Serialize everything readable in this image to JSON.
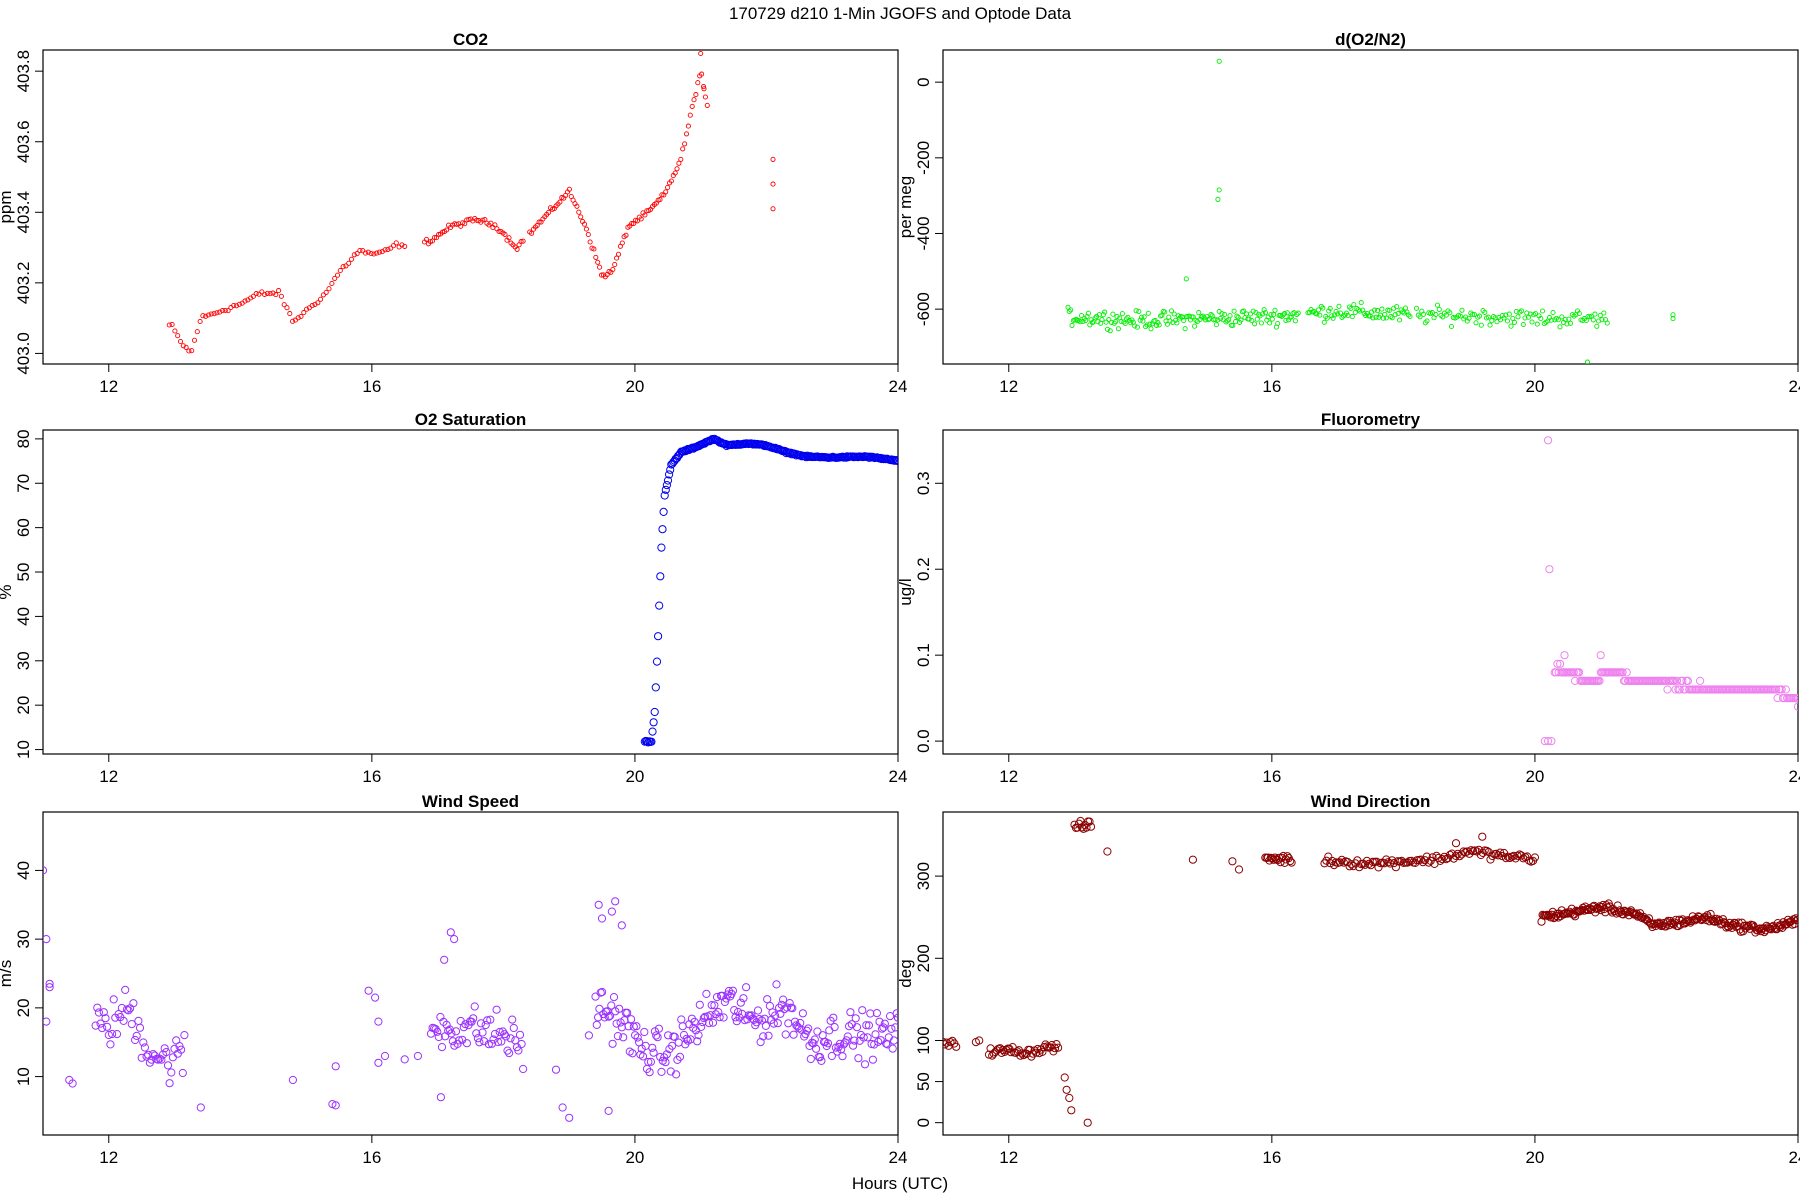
{
  "figure": {
    "title": "170729   d210   1-Min  JGOFS and Optode Data",
    "xlabel": "Hours (UTC)"
  },
  "chart_data": [
    {
      "type": "scatter",
      "title": "CO2",
      "ylabel": "ppm",
      "color": "#ff0000",
      "marker": "small",
      "xlim": [
        11,
        24
      ],
      "ylim": [
        402.97,
        403.86
      ],
      "xticks": [
        12,
        16,
        20,
        24
      ],
      "yticks": [
        403.0,
        403.2,
        403.4,
        403.6,
        403.8
      ],
      "keypoints": [
        [
          12.95,
          403.08
        ],
        [
          13.1,
          403.03
        ],
        [
          13.25,
          403.0
        ],
        [
          13.4,
          403.1
        ],
        [
          13.7,
          403.12
        ],
        [
          14.0,
          403.14
        ],
        [
          14.3,
          403.17
        ],
        [
          14.6,
          403.17
        ],
        [
          14.8,
          403.09
        ],
        [
          15.0,
          403.12
        ],
        [
          15.3,
          403.17
        ],
        [
          15.5,
          403.23
        ],
        [
          15.8,
          403.29
        ],
        [
          16.1,
          403.28
        ],
        [
          16.4,
          403.31
        ],
        [
          16.5,
          403.3
        ],
        [
          16.9,
          403.32
        ],
        [
          17.2,
          403.36
        ],
        [
          17.6,
          403.38
        ],
        [
          17.9,
          403.36
        ],
        [
          18.2,
          403.3
        ],
        [
          18.5,
          403.36
        ],
        [
          18.8,
          403.42
        ],
        [
          19.0,
          403.46
        ],
        [
          19.25,
          403.36
        ],
        [
          19.5,
          403.22
        ],
        [
          19.65,
          403.23
        ],
        [
          19.9,
          403.36
        ],
        [
          20.2,
          403.4
        ],
        [
          20.45,
          403.45
        ],
        [
          20.7,
          403.55
        ],
        [
          20.9,
          403.72
        ],
        [
          21.0,
          403.8
        ],
        [
          21.1,
          403.7
        ]
      ],
      "segments": [
        [
          12.92,
          16.5,
          85
        ],
        [
          16.8,
          18.3,
          50
        ],
        [
          18.4,
          21.1,
          95
        ]
      ],
      "extra_points": [
        [
          22.1,
          403.55
        ],
        [
          22.1,
          403.48
        ],
        [
          22.1,
          403.41
        ],
        [
          21.05,
          403.75
        ],
        [
          21.0,
          403.85
        ]
      ]
    },
    {
      "type": "scatter",
      "title": "d(O2/N2)",
      "ylabel": "per meg",
      "color": "#00ee00",
      "marker": "small",
      "xlim": [
        11,
        24
      ],
      "ylim": [
        -745,
        85
      ],
      "xticks": [
        12,
        16,
        20,
        24
      ],
      "yticks": [
        -600,
        -400,
        -200,
        0
      ],
      "keypoints": [
        [
          12.9,
          -620
        ],
        [
          14.0,
          -630
        ],
        [
          15.0,
          -625
        ],
        [
          16.0,
          -620
        ],
        [
          17.0,
          -605
        ],
        [
          18.0,
          -615
        ],
        [
          19.0,
          -618
        ],
        [
          20.0,
          -624
        ],
        [
          21.1,
          -625
        ]
      ],
      "segments": [
        [
          12.9,
          16.4,
          170
        ],
        [
          16.55,
          18.1,
          70
        ],
        [
          18.2,
          21.1,
          110
        ]
      ],
      "scatter_spread": 60,
      "extra_points": [
        [
          15.2,
          55
        ],
        [
          15.2,
          -285
        ],
        [
          15.18,
          -310
        ],
        [
          14.7,
          -520
        ],
        [
          20.8,
          -740
        ],
        [
          22.1,
          -615
        ],
        [
          22.1,
          -625
        ]
      ]
    },
    {
      "type": "scatter",
      "title": "O2 Saturation",
      "ylabel": "%",
      "color": "#0000ee",
      "marker": "large",
      "xlim": [
        11,
        24
      ],
      "ylim": [
        9,
        82
      ],
      "xticks": [
        12,
        16,
        20,
        24
      ],
      "yticks": [
        10,
        20,
        30,
        40,
        50,
        60,
        70,
        80
      ],
      "keypoints": [
        [
          20.15,
          11.8
        ],
        [
          20.25,
          11.8
        ],
        [
          20.3,
          18
        ],
        [
          20.35,
          35
        ],
        [
          20.4,
          55
        ],
        [
          20.45,
          67
        ],
        [
          20.55,
          74
        ],
        [
          20.7,
          77
        ],
        [
          20.9,
          78
        ],
        [
          21.05,
          79
        ],
        [
          21.2,
          80
        ],
        [
          21.4,
          78.5
        ],
        [
          21.7,
          79
        ],
        [
          22.0,
          78.5
        ],
        [
          22.3,
          77
        ],
        [
          22.6,
          76
        ],
        [
          23.0,
          75.8
        ],
        [
          23.5,
          76
        ],
        [
          23.8,
          75.5
        ],
        [
          24.0,
          75
        ]
      ],
      "segments": [
        [
          20.15,
          24.0,
          230
        ]
      ],
      "extra_points": []
    },
    {
      "type": "scatter",
      "title": "Fluorometry",
      "ylabel": "ug/l",
      "color": "#ee82ee",
      "marker": "large",
      "xlim": [
        11,
        24
      ],
      "ylim": [
        -0.015,
        0.362
      ],
      "xticks": [
        12,
        16,
        20,
        24
      ],
      "yticks": [
        0.0,
        0.1,
        0.2,
        0.3
      ],
      "keypoints": [
        [
          20.3,
          0.085
        ],
        [
          20.8,
          0.07
        ],
        [
          21.2,
          0.08
        ],
        [
          21.5,
          0.07
        ],
        [
          22.2,
          0.065
        ],
        [
          22.8,
          0.06
        ],
        [
          23.5,
          0.06
        ],
        [
          23.8,
          0.055
        ],
        [
          24.0,
          0.05
        ]
      ],
      "segments": [
        [
          20.3,
          24.0,
          180
        ]
      ],
      "quantize": 0.01,
      "extra_points": [
        [
          20.2,
          0.35
        ],
        [
          20.22,
          0.2
        ],
        [
          20.15,
          0.0
        ],
        [
          20.2,
          0.0
        ],
        [
          20.25,
          0.0
        ],
        [
          21.0,
          0.1
        ],
        [
          20.45,
          0.1
        ],
        [
          24.0,
          0.04
        ]
      ]
    },
    {
      "type": "scatter",
      "title": "Wind Speed",
      "ylabel": "m/s",
      "color": "#9b30ff",
      "marker": "large",
      "xlim": [
        11,
        24
      ],
      "ylim": [
        1.5,
        48.5
      ],
      "xticks": [
        12,
        16,
        20,
        24
      ],
      "yticks": [
        10,
        20,
        30,
        40
      ],
      "keypoints": [
        [
          11.0,
          22
        ],
        [
          11.15,
          21
        ],
        [
          11.9,
          17
        ],
        [
          12.1,
          18
        ],
        [
          12.3,
          20
        ],
        [
          12.6,
          14
        ],
        [
          12.9,
          12
        ],
        [
          13.1,
          13
        ],
        [
          16.1,
          15
        ],
        [
          17.0,
          17
        ],
        [
          17.5,
          17
        ],
        [
          18.0,
          16
        ],
        [
          18.5,
          13
        ],
        [
          19.5,
          20
        ],
        [
          19.8,
          18
        ],
        [
          20.1,
          14
        ],
        [
          20.5,
          13
        ],
        [
          21.0,
          18
        ],
        [
          21.4,
          21
        ],
        [
          21.8,
          18
        ],
        [
          22.3,
          20
        ],
        [
          22.7,
          15
        ],
        [
          23.0,
          16
        ],
        [
          23.5,
          16
        ],
        [
          24.0,
          16
        ]
      ],
      "segments": [
        [
          11.8,
          13.15,
          55
        ],
        [
          16.9,
          18.3,
          60
        ],
        [
          19.4,
          24.0,
          230
        ]
      ],
      "scatter_spread": 9,
      "extra_points": [
        [
          11.0,
          40
        ],
        [
          11.05,
          30
        ],
        [
          11.05,
          18
        ],
        [
          11.1,
          23.5
        ],
        [
          11.1,
          23
        ],
        [
          11.4,
          9.5
        ],
        [
          11.45,
          9
        ],
        [
          13.4,
          5.5
        ],
        [
          14.8,
          9.5
        ],
        [
          15.4,
          6
        ],
        [
          15.45,
          5.8
        ],
        [
          15.45,
          11.5
        ],
        [
          15.95,
          22.5
        ],
        [
          16.05,
          21.5
        ],
        [
          16.1,
          18
        ],
        [
          16.1,
          12
        ],
        [
          16.2,
          13
        ],
        [
          16.5,
          12.5
        ],
        [
          16.7,
          13
        ],
        [
          17.2,
          31
        ],
        [
          17.25,
          30
        ],
        [
          17.1,
          27
        ],
        [
          17.05,
          7
        ],
        [
          19.3,
          16
        ],
        [
          19.45,
          35
        ],
        [
          19.5,
          33
        ],
        [
          19.6,
          5
        ],
        [
          19.65,
          34
        ],
        [
          19.7,
          35.5
        ],
        [
          19.8,
          32
        ],
        [
          18.9,
          5.5
        ],
        [
          19.0,
          4
        ],
        [
          18.8,
          11
        ]
      ]
    },
    {
      "type": "scatter",
      "title": "Wind Direction",
      "ylabel": "deg",
      "color": "#8b0000",
      "marker": "large",
      "xlim": [
        11,
        24
      ],
      "ylim": [
        -15,
        378
      ],
      "xticks": [
        12,
        16,
        20,
        24
      ],
      "yticks": [
        0,
        50,
        100,
        200,
        300
      ],
      "keypoints": [
        [
          11.0,
          98
        ],
        [
          11.2,
          98
        ],
        [
          11.7,
          85
        ],
        [
          12.0,
          88
        ],
        [
          12.3,
          85
        ],
        [
          12.6,
          92
        ],
        [
          12.75,
          92
        ],
        [
          12.85,
          60
        ],
        [
          12.9,
          25
        ],
        [
          13.0,
          360
        ],
        [
          13.25,
          362
        ],
        [
          15.9,
          322
        ],
        [
          16.3,
          320
        ],
        [
          17.0,
          318
        ],
        [
          17.5,
          315
        ],
        [
          18.0,
          318
        ],
        [
          18.5,
          320
        ],
        [
          19.0,
          330
        ],
        [
          19.5,
          325
        ],
        [
          20.0,
          320
        ],
        [
          20.1,
          250
        ],
        [
          20.5,
          255
        ],
        [
          21.0,
          262
        ],
        [
          21.5,
          255
        ],
        [
          21.8,
          240
        ],
        [
          22.3,
          245
        ],
        [
          22.6,
          250
        ],
        [
          23.0,
          240
        ],
        [
          23.5,
          235
        ],
        [
          24.0,
          245
        ]
      ],
      "segments": [
        [
          11.0,
          11.2,
          8
        ],
        [
          11.7,
          12.75,
          45
        ],
        [
          13.0,
          13.25,
          12
        ],
        [
          15.9,
          16.3,
          20
        ],
        [
          16.8,
          20.0,
          110
        ],
        [
          20.1,
          24.0,
          230
        ]
      ],
      "scatter_spread": 14,
      "extra_points": [
        [
          11.5,
          98
        ],
        [
          11.55,
          100
        ],
        [
          12.85,
          55
        ],
        [
          12.88,
          40
        ],
        [
          12.92,
          30
        ],
        [
          12.95,
          15
        ],
        [
          13.2,
          0
        ],
        [
          13.5,
          330
        ],
        [
          14.8,
          320
        ],
        [
          15.4,
          318
        ],
        [
          15.5,
          308
        ],
        [
          18.8,
          340
        ],
        [
          19.2,
          348
        ]
      ]
    }
  ]
}
